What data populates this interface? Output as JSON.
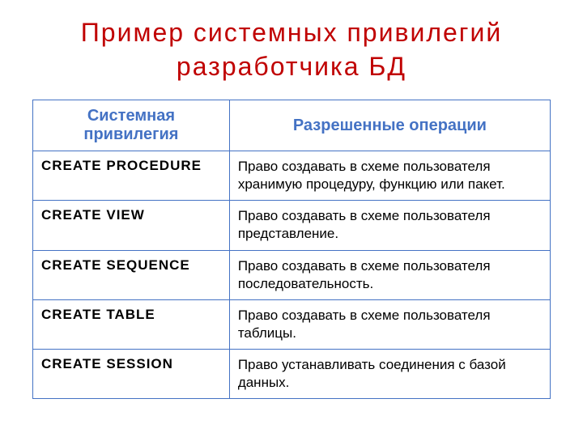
{
  "title": "Пример  системных  привилегий разработчика  БД",
  "table": {
    "columns": [
      {
        "label": "Системная привилегия",
        "width": "38%"
      },
      {
        "label": "Разрешенные операции",
        "width": "62%"
      }
    ],
    "rows": [
      {
        "privilege": "CREATE  PROCEDURE",
        "operation": "Право создавать в схеме пользователя хранимую процедуру, функцию или пакет."
      },
      {
        "privilege": "CREATE  VIEW",
        "operation": "Право создавать в схеме пользователя представление."
      },
      {
        "privilege": "CREATE  SEQUENCE",
        "operation": "Право создавать в схеме пользователя последовательность."
      },
      {
        "privilege": "CREATE  TABLE",
        "operation": "Право создавать в схеме пользователя таблицы."
      },
      {
        "privilege": "CREATE  SESSION",
        "operation": "Право устанавливать соединения с базой данных."
      }
    ],
    "colors": {
      "title_color": "#c00000",
      "header_text_color": "#4472c4",
      "border_color": "#4472c4",
      "body_text_color": "#000000",
      "background_color": "#ffffff"
    },
    "typography": {
      "title_fontsize": 32,
      "header_fontsize": 20,
      "cell_fontsize": 17,
      "privilege_weight": "bold",
      "header_weight": "bold"
    }
  }
}
